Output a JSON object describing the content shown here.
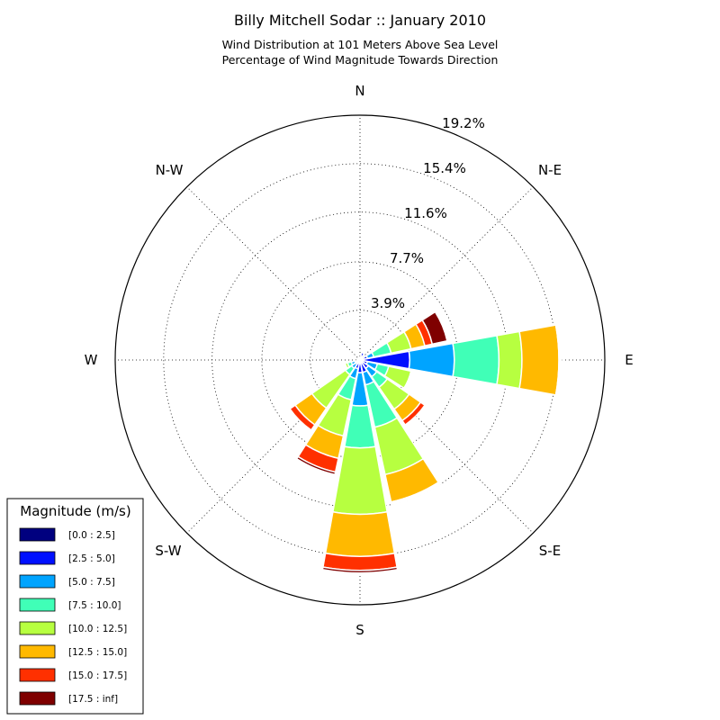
{
  "title": "Billy Mitchell Sodar :: January 2010",
  "subtitle_line1": "Wind Distribution at 101 Meters Above Sea Level",
  "subtitle_line2": "Percentage of Wind Magnitude Towards Direction",
  "chart_data": {
    "type": "windrose",
    "title": "Billy Mitchell Sodar :: January 2010",
    "subtitle": [
      "Wind Distribution at 101 Meters Above Sea Level",
      "Percentage of Wind Magnitude Towards Direction"
    ],
    "directions": [
      "N",
      "NNE",
      "NE",
      "ENE",
      "E",
      "ESE",
      "SE",
      "SSE",
      "S",
      "SSW",
      "SW",
      "WSW",
      "W",
      "WNW",
      "NW",
      "NNW"
    ],
    "compass_labels": [
      "N",
      "N-E",
      "E",
      "S-E",
      "S",
      "S-W",
      "W",
      "N-W"
    ],
    "radial_ticks": [
      "3.9%",
      "7.7%",
      "11.6%",
      "15.4%",
      "19.2%"
    ],
    "radial_tick_values": [
      3.9,
      7.7,
      11.6,
      15.4,
      19.2
    ],
    "rmax": 19.2,
    "grid": true,
    "legend_title": "Magnitude (m/s)",
    "legend_position": "bottom-left",
    "series": [
      {
        "name": "[0.0 : 2.5]",
        "color": "#00007f",
        "values": [
          0.1,
          0.3,
          0.2,
          0.2,
          0.3,
          0.1,
          0.1,
          0.2,
          0.1,
          0.1,
          0.1,
          0.1,
          0.1,
          0.1,
          0.0,
          0.0
        ]
      },
      {
        "name": "[2.5 : 5.0]",
        "color": "#0010ff",
        "values": [
          0.0,
          0.3,
          0.2,
          0.4,
          3.6,
          0.5,
          0.7,
          0.8,
          0.9,
          0.6,
          0.3,
          0.3,
          0.1,
          0.0,
          0.0,
          0.0
        ]
      },
      {
        "name": "[5.0 : 7.5]",
        "color": "#00a4ff",
        "values": [
          0.0,
          0.1,
          0.1,
          0.5,
          3.5,
          0.8,
          0.8,
          1.0,
          2.6,
          0.8,
          0.4,
          0.3,
          0.0,
          0.0,
          0.0,
          0.0
        ]
      },
      {
        "name": "[7.5 : 10.0]",
        "color": "#40ffb7",
        "values": [
          0.0,
          0.0,
          0.0,
          1.4,
          3.5,
          0.9,
          1.0,
          3.4,
          3.3,
          1.7,
          0.6,
          0.3,
          0.0,
          0.0,
          0.0,
          0.0
        ]
      },
      {
        "name": "[10.0 : 12.5]",
        "color": "#b7ff40",
        "values": [
          0.0,
          0.0,
          0.0,
          1.6,
          1.8,
          1.8,
          2.1,
          3.8,
          5.2,
          2.9,
          3.2,
          0.2,
          0.0,
          0.0,
          0.0,
          0.0
        ]
      },
      {
        "name": "[12.5 : 15.0]",
        "color": "#ffb900",
        "values": [
          0.0,
          0.0,
          0.0,
          1.1,
          2.9,
          0.1,
          1.1,
          2.2,
          3.3,
          1.8,
          1.6,
          0.1,
          0.0,
          0.0,
          0.0,
          0.0
        ]
      },
      {
        "name": "[15.0 : 17.5]",
        "color": "#ff3000",
        "values": [
          0.0,
          0.0,
          0.0,
          0.6,
          0.1,
          0.0,
          0.4,
          0.1,
          1.1,
          1.1,
          0.5,
          0.0,
          0.0,
          0.0,
          0.0,
          0.0
        ]
      },
      {
        "name": "[17.5 : inf]",
        "color": "#7f0000",
        "values": [
          0.0,
          0.0,
          0.0,
          1.2,
          0.1,
          0.0,
          0.0,
          0.1,
          0.2,
          0.2,
          0.0,
          0.0,
          0.0,
          0.0,
          0.0,
          0.0
        ]
      }
    ]
  }
}
